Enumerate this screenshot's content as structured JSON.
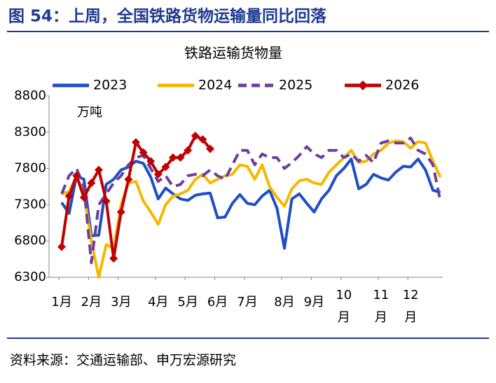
{
  "header": {
    "title": "图 54：上周，全国铁路货物运输量同比回落"
  },
  "footer": {
    "source": "资料来源：交通运输部、申万宏源研究"
  },
  "chart_data": {
    "type": "line",
    "title": "铁路运输货物量",
    "ylabel": "万吨",
    "categories": [
      "1月",
      null,
      null,
      null,
      "2月",
      null,
      null,
      null,
      "3月",
      null,
      null,
      null,
      null,
      "4月",
      null,
      null,
      null,
      "5月",
      null,
      null,
      null,
      "6月",
      null,
      null,
      null,
      "7月",
      null,
      null,
      null,
      null,
      "8月",
      null,
      null,
      null,
      "9月",
      null,
      null,
      null,
      "10月",
      null,
      null,
      null,
      null,
      "11月",
      null,
      null,
      null,
      "12月",
      null,
      null,
      null,
      null
    ],
    "ylim": [
      6300,
      8800
    ],
    "yticks": [
      6300,
      6800,
      7300,
      7800,
      8300,
      8800
    ],
    "series": [
      {
        "name": "2023",
        "color": "#1f4fc4",
        "style": "solid",
        "marker": "none",
        "values": [
          7330,
          7180,
          7700,
          7650,
          6870,
          6880,
          7580,
          7650,
          7780,
          7820,
          7900,
          7870,
          7680,
          7380,
          7530,
          7450,
          7380,
          7360,
          7430,
          7450,
          7460,
          7120,
          7130,
          7320,
          7440,
          7320,
          7300,
          7420,
          7500,
          7250,
          6700,
          7380,
          7450,
          7320,
          7200,
          7380,
          7500,
          7700,
          7800,
          7930,
          7520,
          7580,
          7720,
          7670,
          7640,
          7750,
          7830,
          7820,
          7930,
          7780,
          7500,
          7470
        ]
      },
      {
        "name": "2024",
        "color": "#f5b800",
        "style": "solid",
        "marker": "none",
        "values": [
          7450,
          7480,
          7700,
          7450,
          6800,
          6300,
          6750,
          6700,
          7300,
          7600,
          7620,
          7350,
          7200,
          7030,
          7300,
          7420,
          7450,
          7500,
          7650,
          7720,
          7600,
          7650,
          7700,
          7720,
          7850,
          7830,
          7650,
          7850,
          7550,
          7400,
          7280,
          7520,
          7630,
          7650,
          7600,
          7580,
          7750,
          7850,
          7950,
          8050,
          7880,
          7900,
          8000,
          8050,
          8150,
          8180,
          8170,
          8080,
          8170,
          8150,
          7900,
          7680
        ]
      },
      {
        "name": "2025",
        "color": "#6b3fa0",
        "style": "dashed",
        "marker": "none",
        "values": [
          7450,
          7700,
          7800,
          7550,
          6500,
          7300,
          7450,
          7600,
          7700,
          7850,
          7950,
          7980,
          7800,
          7620,
          7700,
          7550,
          7580,
          7700,
          7720,
          7700,
          7780,
          7700,
          7650,
          7850,
          8050,
          8050,
          7850,
          8000,
          7950,
          7950,
          7800,
          7880,
          7980,
          8100,
          8000,
          7950,
          8050,
          8050,
          7950,
          8000,
          7900,
          7980,
          7880,
          8150,
          8180,
          8150,
          8150,
          8220,
          8050,
          8000,
          7850,
          7350
        ]
      },
      {
        "name": "2026",
        "color": "#c00000",
        "style": "solid",
        "marker": "diamond",
        "values": [
          6720,
          7420,
          7700,
          7400,
          7600,
          7780,
          7350,
          6560,
          7200,
          7650,
          8160,
          8020,
          7900,
          7720,
          7820,
          7950,
          7950,
          8050,
          8250,
          8200,
          8070,
          null,
          null,
          null,
          null,
          null,
          null,
          null,
          null,
          null,
          null,
          null,
          null,
          null,
          null,
          null,
          null,
          null,
          null,
          null,
          null,
          null,
          null,
          null,
          null,
          null,
          null,
          null,
          null,
          null,
          null,
          null
        ]
      }
    ]
  }
}
